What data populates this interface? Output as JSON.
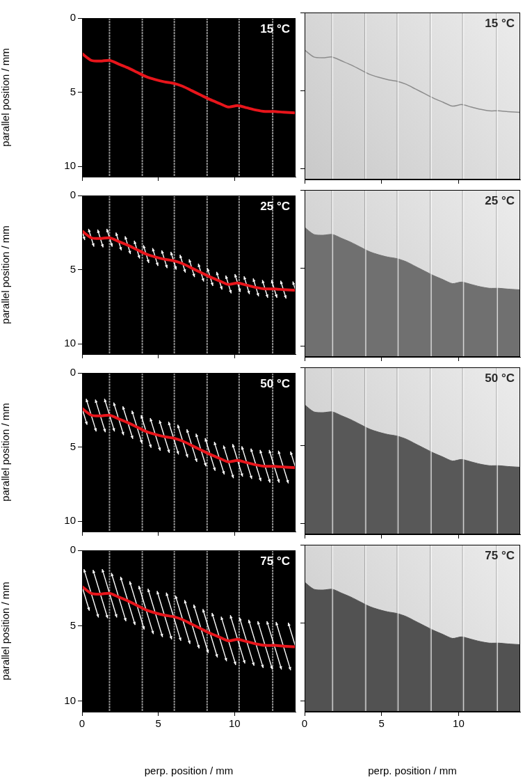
{
  "chart_data": [
    {
      "type": "line",
      "title": "15 °C",
      "ylabel": "parallel position / mm",
      "tick_labels": "y",
      "grid": false,
      "xlim": [
        0,
        14
      ],
      "ylim": [
        0,
        10.7
      ],
      "xticks": [
        0,
        5,
        10
      ],
      "yticks": [
        0,
        5,
        10
      ],
      "wires_x": [
        1.8,
        3.95,
        6.05,
        8.2,
        10.3,
        12.5
      ],
      "x": [
        0,
        0.6,
        1.2,
        1.8,
        2.4,
        3.0,
        3.6,
        4.2,
        4.8,
        5.4,
        6.0,
        6.6,
        7.2,
        7.8,
        8.4,
        9.0,
        9.6,
        10.2,
        10.8,
        11.4,
        12.0,
        12.6,
        13.2,
        14.0
      ],
      "series": [
        {
          "type": "line",
          "color": "#e8151b",
          "values": [
            2.4,
            2.85,
            2.9,
            2.85,
            3.1,
            3.35,
            3.65,
            3.95,
            4.15,
            4.3,
            4.4,
            4.6,
            4.9,
            5.2,
            5.5,
            5.75,
            6.0,
            5.9,
            6.05,
            6.2,
            6.3,
            6.3,
            6.35,
            6.4
          ]
        }
      ]
    },
    {
      "type": "image",
      "title": "15 °C",
      "tick_labels": false,
      "grid": false,
      "xlim": [
        0,
        14
      ],
      "ylim": [
        0,
        10.7
      ],
      "xticks": [
        0,
        5,
        10
      ],
      "yticks": [
        0,
        5,
        10
      ],
      "wires_x": [
        1.8,
        3.95,
        6.05,
        8.2,
        10.3,
        12.5
      ],
      "x": [
        0,
        0.6,
        1.2,
        1.8,
        2.4,
        3.0,
        3.6,
        4.2,
        4.8,
        5.4,
        6.0,
        6.6,
        7.2,
        7.8,
        8.4,
        9.0,
        9.6,
        10.2,
        10.8,
        11.4,
        12.0,
        12.6,
        13.2,
        14.0
      ],
      "series": [
        {
          "type": "line",
          "color": "#8c8c8c",
          "values": [
            2.4,
            2.85,
            2.9,
            2.85,
            3.1,
            3.35,
            3.65,
            3.95,
            4.15,
            4.3,
            4.4,
            4.6,
            4.9,
            5.2,
            5.5,
            5.75,
            6.0,
            5.9,
            6.05,
            6.2,
            6.3,
            6.3,
            6.35,
            6.4
          ]
        }
      ]
    },
    {
      "type": "line",
      "title": "25 °C",
      "ylabel": "parallel position / mm",
      "tick_labels": "y",
      "grid": false,
      "xlim": [
        0,
        14
      ],
      "ylim": [
        0,
        10.7
      ],
      "xticks": [
        0,
        5,
        10
      ],
      "yticks": [
        0,
        5,
        10
      ],
      "wires_x": [
        1.8,
        3.95,
        6.05,
        8.2,
        10.3,
        12.5
      ],
      "arrow_amplitude": 0.6,
      "arrow_direction": [
        0.3,
        1
      ],
      "x": [
        0,
        0.6,
        1.2,
        1.8,
        2.4,
        3.0,
        3.6,
        4.2,
        4.8,
        5.4,
        6.0,
        6.6,
        7.2,
        7.8,
        8.4,
        9.0,
        9.6,
        10.2,
        10.8,
        11.4,
        12.0,
        12.6,
        13.2,
        14.0
      ],
      "series": [
        {
          "type": "line",
          "color": "#e8151b",
          "values": [
            2.4,
            2.85,
            2.9,
            2.85,
            3.1,
            3.35,
            3.65,
            3.95,
            4.15,
            4.3,
            4.4,
            4.6,
            4.9,
            5.2,
            5.5,
            5.75,
            6.0,
            5.9,
            6.05,
            6.2,
            6.3,
            6.3,
            6.35,
            6.4
          ]
        }
      ]
    },
    {
      "type": "image",
      "title": "25 °C",
      "tick_labels": false,
      "grid": false,
      "xlim": [
        0,
        14
      ],
      "ylim": [
        0,
        10.7
      ],
      "xticks": [
        0,
        5,
        10
      ],
      "yticks": [
        0,
        5,
        10
      ],
      "wires_x": [
        1.8,
        3.95,
        6.05,
        8.2,
        10.3,
        12.5
      ],
      "x": [
        0,
        0.6,
        1.2,
        1.8,
        2.4,
        3.0,
        3.6,
        4.2,
        4.8,
        5.4,
        6.0,
        6.6,
        7.2,
        7.8,
        8.4,
        9.0,
        9.6,
        10.2,
        10.8,
        11.4,
        12.0,
        12.6,
        13.2,
        14.0
      ],
      "series": [
        {
          "type": "area",
          "color": "#707070",
          "values": [
            2.4,
            2.85,
            2.9,
            2.85,
            3.1,
            3.35,
            3.65,
            3.95,
            4.15,
            4.3,
            4.4,
            4.6,
            4.9,
            5.2,
            5.5,
            5.75,
            6.0,
            5.9,
            6.05,
            6.2,
            6.3,
            6.3,
            6.35,
            6.4
          ]
        }
      ]
    },
    {
      "type": "line",
      "title": "50 °C",
      "ylabel": "parallel position / mm",
      "tick_labels": "y",
      "grid": false,
      "xlim": [
        0,
        14
      ],
      "ylim": [
        0,
        10.7
      ],
      "xticks": [
        0,
        5,
        10
      ],
      "yticks": [
        0,
        5,
        10
      ],
      "wires_x": [
        1.8,
        3.95,
        6.05,
        8.2,
        10.3,
        12.5
      ],
      "arrow_amplitude": 1.1,
      "arrow_direction": [
        0.3,
        1
      ],
      "x": [
        0,
        0.6,
        1.2,
        1.8,
        2.4,
        3.0,
        3.6,
        4.2,
        4.8,
        5.4,
        6.0,
        6.6,
        7.2,
        7.8,
        8.4,
        9.0,
        9.6,
        10.2,
        10.8,
        11.4,
        12.0,
        12.6,
        13.2,
        14.0
      ],
      "series": [
        {
          "type": "line",
          "color": "#e8151b",
          "values": [
            2.4,
            2.85,
            2.9,
            2.85,
            3.1,
            3.35,
            3.65,
            3.95,
            4.15,
            4.3,
            4.4,
            4.6,
            4.9,
            5.2,
            5.5,
            5.75,
            6.0,
            5.9,
            6.05,
            6.2,
            6.3,
            6.3,
            6.35,
            6.4
          ]
        }
      ]
    },
    {
      "type": "image",
      "title": "50 °C",
      "tick_labels": false,
      "grid": false,
      "xlim": [
        0,
        14
      ],
      "ylim": [
        0,
        10.7
      ],
      "xticks": [
        0,
        5,
        10
      ],
      "yticks": [
        0,
        5,
        10
      ],
      "wires_x": [
        1.8,
        3.95,
        6.05,
        8.2,
        10.3,
        12.5
      ],
      "x": [
        0,
        0.6,
        1.2,
        1.8,
        2.4,
        3.0,
        3.6,
        4.2,
        4.8,
        5.4,
        6.0,
        6.6,
        7.2,
        7.8,
        8.4,
        9.0,
        9.6,
        10.2,
        10.8,
        11.4,
        12.0,
        12.6,
        13.2,
        14.0
      ],
      "series": [
        {
          "type": "area",
          "color": "#585858",
          "values": [
            2.4,
            2.85,
            2.9,
            2.85,
            3.1,
            3.35,
            3.65,
            3.95,
            4.15,
            4.3,
            4.4,
            4.6,
            4.9,
            5.2,
            5.5,
            5.75,
            6.0,
            5.9,
            6.05,
            6.2,
            6.3,
            6.3,
            6.35,
            6.4
          ]
        }
      ]
    },
    {
      "type": "line",
      "title": "75 °C",
      "xlabel": "perp. position / mm",
      "ylabel": "parallel position / mm",
      "tick_labels": true,
      "grid": false,
      "xlim": [
        0,
        14
      ],
      "ylim": [
        0,
        10.7
      ],
      "xticks": [
        0,
        5,
        10
      ],
      "yticks": [
        0,
        5,
        10
      ],
      "wires_x": [
        1.8,
        3.95,
        6.05,
        8.2,
        10.3,
        12.5
      ],
      "arrow_amplitude": 1.6,
      "arrow_direction": [
        0.3,
        1
      ],
      "x": [
        0,
        0.6,
        1.2,
        1.8,
        2.4,
        3.0,
        3.6,
        4.2,
        4.8,
        5.4,
        6.0,
        6.6,
        7.2,
        7.8,
        8.4,
        9.0,
        9.6,
        10.2,
        10.8,
        11.4,
        12.0,
        12.6,
        13.2,
        14.0
      ],
      "series": [
        {
          "type": "line",
          "color": "#e8151b",
          "values": [
            2.4,
            2.85,
            2.9,
            2.85,
            3.1,
            3.35,
            3.65,
            3.95,
            4.15,
            4.3,
            4.4,
            4.6,
            4.9,
            5.2,
            5.5,
            5.75,
            6.0,
            5.9,
            6.05,
            6.2,
            6.3,
            6.3,
            6.35,
            6.4
          ]
        }
      ]
    },
    {
      "type": "image",
      "title": "75 °C",
      "xlabel": "perp. position / mm",
      "tick_labels": "x",
      "grid": false,
      "xlim": [
        0,
        14
      ],
      "ylim": [
        0,
        10.7
      ],
      "xticks": [
        0,
        5,
        10
      ],
      "yticks": [
        0,
        5,
        10
      ],
      "wires_x": [
        1.8,
        3.95,
        6.05,
        8.2,
        10.3,
        12.5
      ],
      "x": [
        0,
        0.6,
        1.2,
        1.8,
        2.4,
        3.0,
        3.6,
        4.2,
        4.8,
        5.4,
        6.0,
        6.6,
        7.2,
        7.8,
        8.4,
        9.0,
        9.6,
        10.2,
        10.8,
        11.4,
        12.0,
        12.6,
        13.2,
        14.0
      ],
      "series": [
        {
          "type": "area",
          "color": "#525252",
          "values": [
            2.4,
            2.85,
            2.9,
            2.85,
            3.1,
            3.35,
            3.65,
            3.95,
            4.15,
            4.3,
            4.4,
            4.6,
            4.9,
            5.2,
            5.5,
            5.75,
            6.0,
            5.9,
            6.05,
            6.2,
            6.3,
            6.3,
            6.35,
            6.4
          ]
        }
      ]
    }
  ]
}
